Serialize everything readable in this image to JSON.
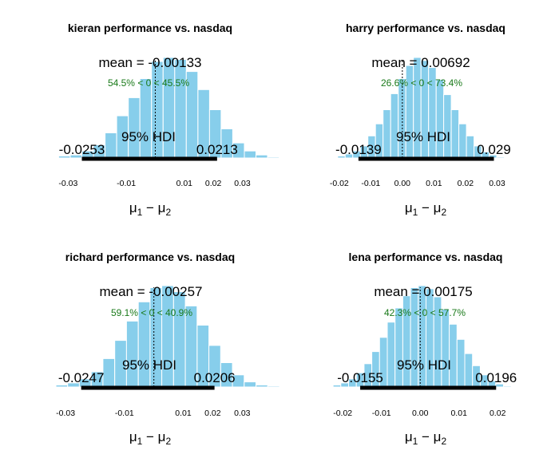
{
  "colors": {
    "bar": "#87CEEB",
    "bar_stroke": "#ffffff",
    "hdi": "#000000",
    "pct": "#1a7a1a",
    "zero_line": "#000000"
  },
  "chart_data": [
    {
      "type": "bar",
      "title": "kieran performance vs. nasdaq",
      "xlabel": "μ1 − μ2",
      "mean_label": "mean = -0.00133",
      "pct_label": "54.5% < 0 < 45.5%",
      "hdi_label": "95% HDI",
      "hdi_low_label": "-0.0253",
      "hdi_high_label": "0.0213",
      "hdi": [
        -0.0253,
        0.0213
      ],
      "xlim": [
        -0.037,
        0.034
      ],
      "xticks": [
        -0.03,
        -0.01,
        0.01,
        0.02,
        0.03
      ],
      "xtick_labels": [
        "-0.03",
        "-0.01",
        "0.01",
        "0.02",
        "0.03"
      ],
      "bin_width": 0.004,
      "bin_start": -0.0333,
      "heights": [
        0.02,
        0.03,
        0.07,
        0.13,
        0.25,
        0.42,
        0.6,
        0.79,
        0.96,
        1.0,
        0.98,
        0.86,
        0.68,
        0.48,
        0.29,
        0.15,
        0.07,
        0.03,
        0.01
      ]
    },
    {
      "type": "bar",
      "title": "harry performance vs. nasdaq",
      "xlabel": "μ1 − μ2",
      "mean_label": "mean = 0.00692",
      "pct_label": "26.6% < 0 < 73.4%",
      "hdi_label": "95% HDI",
      "hdi_low_label": "-0.0139",
      "hdi_high_label": "0.029",
      "hdi": [
        -0.0139,
        0.029
      ],
      "xlim": [
        -0.025,
        0.04
      ],
      "xticks": [
        -0.02,
        -0.01,
        0.0,
        0.01,
        0.02,
        0.03
      ],
      "xtick_labels": [
        "-0.02",
        "-0.01",
        "0.00",
        "0.01",
        "0.02",
        "0.03"
      ],
      "bin_width": 0.0024,
      "bin_start": -0.0205,
      "heights": [
        0.02,
        0.04,
        0.07,
        0.12,
        0.22,
        0.34,
        0.48,
        0.64,
        0.79,
        0.92,
        1.0,
        0.97,
        0.9,
        0.78,
        0.63,
        0.48,
        0.34,
        0.22,
        0.12,
        0.06,
        0.03,
        0.01
      ]
    },
    {
      "type": "bar",
      "title": "richard performance vs. nasdaq",
      "xlabel": "μ1 − μ2",
      "mean_label": "mean = -0.00257",
      "pct_label": "59.1% < 0 < 40.9%",
      "hdi_label": "95% HDI",
      "hdi_low_label": "-0.0247",
      "hdi_high_label": "0.0206",
      "hdi": [
        -0.0247,
        0.0206
      ],
      "xlim": [
        -0.036,
        0.034
      ],
      "xticks": [
        -0.03,
        -0.01,
        0.01,
        0.02,
        0.03
      ],
      "xtick_labels": [
        "-0.03",
        "-0.01",
        "0.01",
        "0.02",
        "0.03"
      ],
      "bin_width": 0.004,
      "bin_start": -0.0333,
      "heights": [
        0.02,
        0.04,
        0.08,
        0.15,
        0.28,
        0.46,
        0.65,
        0.84,
        0.98,
        1.0,
        0.94,
        0.8,
        0.61,
        0.41,
        0.24,
        0.12,
        0.05,
        0.02,
        0.01
      ]
    },
    {
      "type": "bar",
      "title": "lena performance vs. nasdaq",
      "xlabel": "μ1 − μ2",
      "mean_label": "mean = 0.00175",
      "pct_label": "42.3% < 0 < 57.7%",
      "hdi_label": "95% HDI",
      "hdi_low_label": "-0.0155",
      "hdi_high_label": "0.0196",
      "hdi": [
        -0.0155,
        0.0196
      ],
      "xlim": [
        -0.025,
        0.028
      ],
      "xticks": [
        -0.02,
        -0.01,
        0.0,
        0.01,
        0.02
      ],
      "xtick_labels": [
        "-0.02",
        "-0.01",
        "0.00",
        "0.01",
        "0.02"
      ],
      "bin_width": 0.002,
      "bin_start": -0.0225,
      "heights": [
        0.02,
        0.04,
        0.08,
        0.14,
        0.23,
        0.35,
        0.49,
        0.64,
        0.78,
        0.9,
        0.98,
        1.0,
        0.97,
        0.89,
        0.77,
        0.62,
        0.47,
        0.33,
        0.21,
        0.12,
        0.06,
        0.03,
        0.01
      ]
    }
  ]
}
